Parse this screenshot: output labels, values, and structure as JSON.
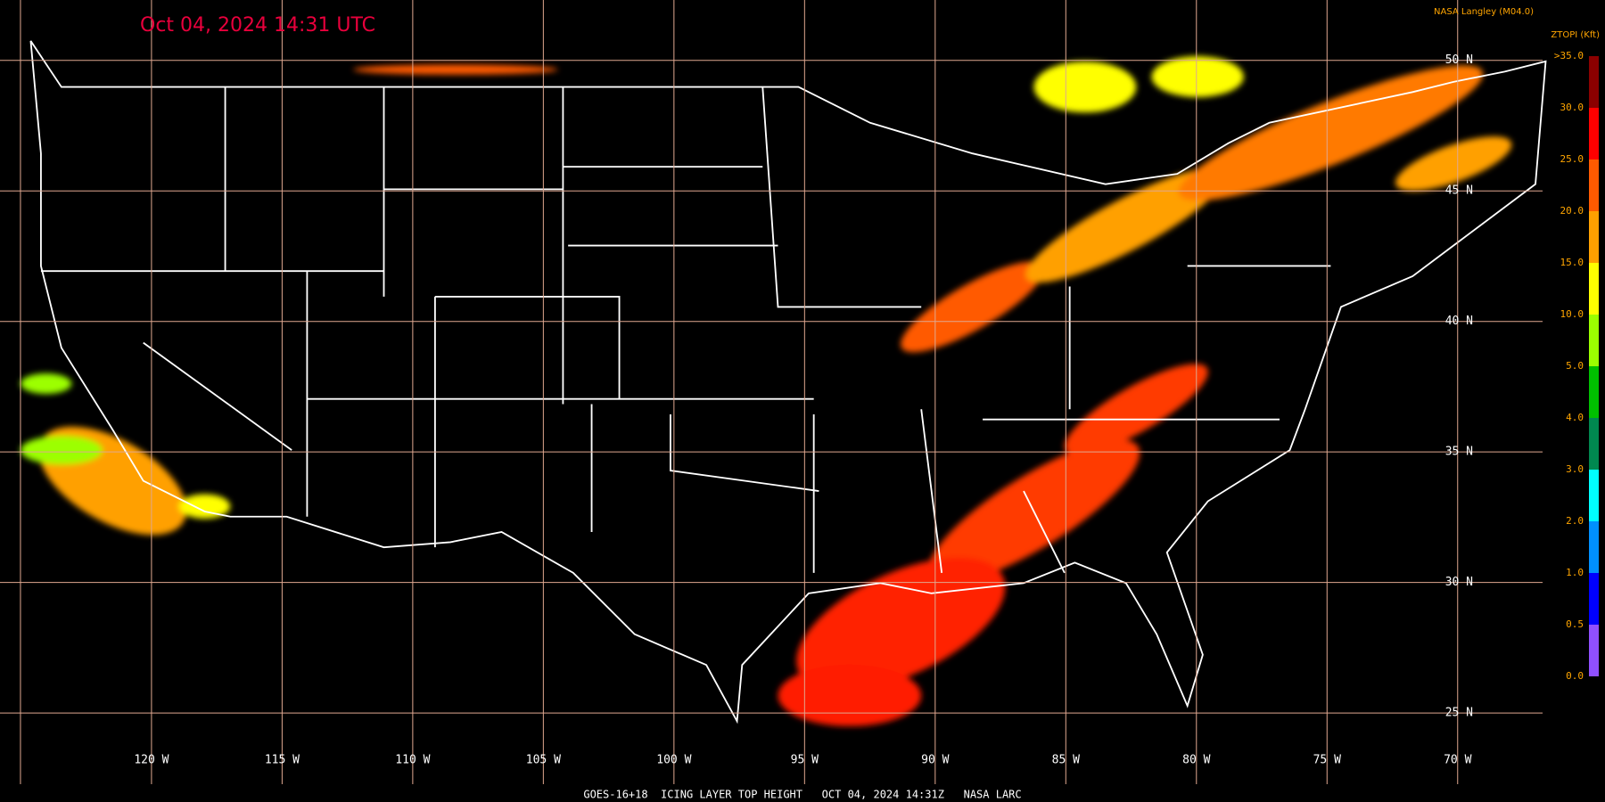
{
  "timestamp": "Oct 04, 2024 14:31 UTC",
  "credit": "NASA Langley (M04.0)",
  "legend": {
    "title": "ZTOPI (Kft)",
    "labels": [
      ">35.0",
      "30.0",
      "25.0",
      "20.0",
      "15.0",
      "10.0",
      "5.0",
      "4.0",
      "3.0",
      "2.0",
      "1.0",
      "0.5",
      "0.0"
    ],
    "colors": [
      "#8b0000",
      "#ff0000",
      "#ff5a00",
      "#ffa000",
      "#ffff00",
      "#9cff00",
      "#00c000",
      "#008850",
      "#00ffff",
      "#0090ff",
      "#0000ff",
      "#9050ff"
    ]
  },
  "latitudes": [
    "50 N",
    "45 N",
    "40 N",
    "35 N",
    "30 N",
    "25 N"
  ],
  "longitudes": [
    "120 W",
    "115 W",
    "110 W",
    "105 W",
    "100 W",
    "95 W",
    "90 W",
    "85 W",
    "80 W",
    "75 W",
    "70 W"
  ],
  "footer": "GOES-16+18  ICING LAYER TOP HEIGHT   OCT 04, 2024 14:31Z   NASA LARC"
}
